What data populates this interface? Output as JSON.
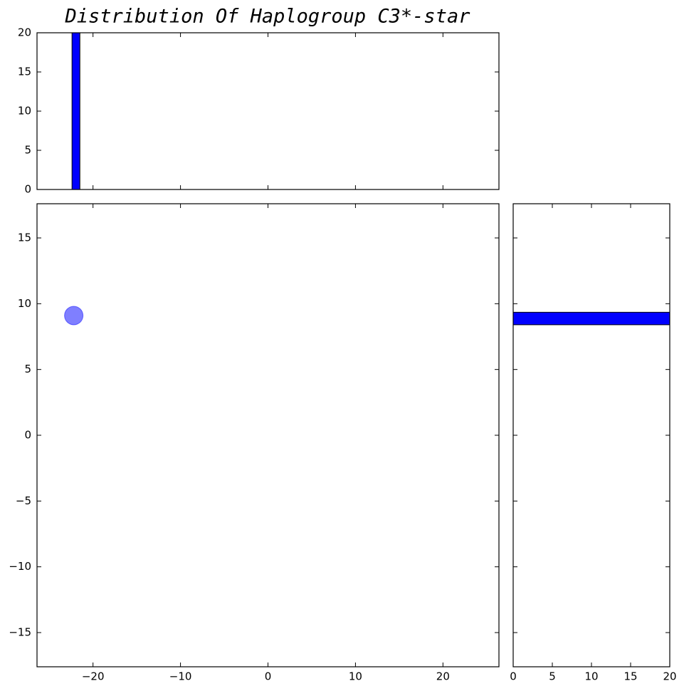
{
  "chart_data": [
    {
      "type": "histogram",
      "title": "Distribution Of Haplogroup C3*-star",
      "bins": [
        -22.4,
        -21.5
      ],
      "values": [
        20
      ],
      "color": "#0000ff",
      "xlim": [
        -26.4,
        26.4
      ],
      "ylim": [
        0,
        20
      ],
      "yticks": [
        0,
        5,
        10,
        15,
        20
      ]
    },
    {
      "type": "scatter",
      "x": [
        -22.2
      ],
      "values": [
        9.1
      ],
      "color": "#0000ff",
      "xlim": [
        -26.4,
        26.4
      ],
      "ylim": [
        -17.6,
        17.6
      ],
      "xticks": [
        {
          "value": -20,
          "label": "−20"
        },
        {
          "value": -10,
          "label": "−10"
        },
        0,
        10,
        20
      ],
      "yticks": [
        {
          "value": -15,
          "label": "−15"
        },
        {
          "value": -10,
          "label": "−10"
        },
        {
          "value": -5,
          "label": "−5"
        },
        0,
        5,
        10,
        15
      ]
    },
    {
      "type": "histogram",
      "orientation": "horizontal",
      "bins": [
        8.4,
        9.35
      ],
      "values": [
        20
      ],
      "color": "#0000ff",
      "xlim": [
        0,
        20
      ],
      "xticks": [
        0,
        5,
        10,
        15,
        20
      ],
      "ylim": [
        -17.6,
        17.6
      ]
    }
  ]
}
